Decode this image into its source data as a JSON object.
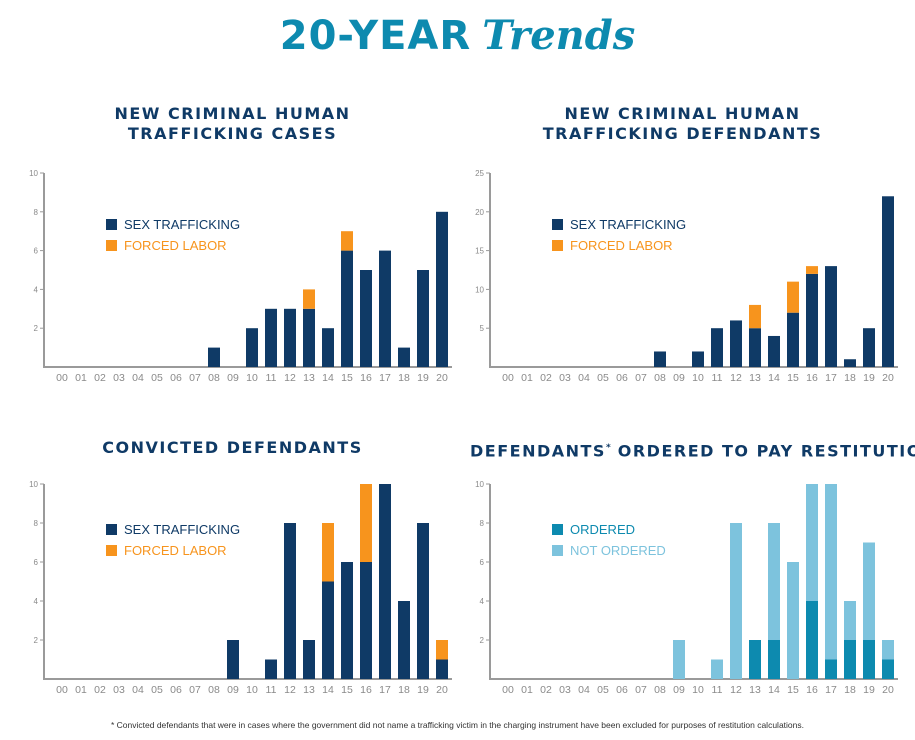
{
  "header": {
    "title_bold": "20-YEAR",
    "title_italic": "Trends"
  },
  "colors": {
    "sex_trafficking": "#0f3a66",
    "forced_labor": "#f7941d",
    "ordered": "#0d8aaf",
    "not_ordered": "#7dc3dd",
    "axis": "#9a9a9a",
    "tick_text": "#8a8a8a",
    "title_text": "#0f3a66"
  },
  "footnote": "* Convicted defendants that were in cases where the government did not name a trafficking victim in the charging instrument have been excluded for purposes of restitution calculations.",
  "chart_data": [
    {
      "id": "cases",
      "type": "bar",
      "stacked": true,
      "title": "NEW CRIMINAL HUMAN TRAFFICKING CASES",
      "title_lines": [
        "NEW CRIMINAL HUMAN",
        "TRAFFICKING CASES"
      ],
      "categories": [
        "00",
        "01",
        "02",
        "03",
        "04",
        "05",
        "06",
        "07",
        "08",
        "09",
        "10",
        "11",
        "12",
        "13",
        "14",
        "15",
        "16",
        "17",
        "18",
        "19",
        "20"
      ],
      "ylim": [
        0,
        10
      ],
      "yticks": [
        2,
        4,
        6,
        8,
        10
      ],
      "legend_position": "upper-left",
      "series": [
        {
          "name": "SEX TRAFFICKING",
          "color_key": "sex_trafficking",
          "values": [
            0,
            0,
            0,
            0,
            0,
            0,
            0,
            0,
            1,
            0,
            2,
            3,
            3,
            3,
            2,
            6,
            5,
            6,
            1,
            5,
            8
          ]
        },
        {
          "name": "FORCED LABOR",
          "color_key": "forced_labor",
          "values": [
            0,
            0,
            0,
            0,
            0,
            0,
            0,
            0,
            0,
            0,
            0,
            0,
            0,
            1,
            0,
            1,
            0,
            0,
            0,
            0,
            0
          ]
        }
      ]
    },
    {
      "id": "defendants",
      "type": "bar",
      "stacked": true,
      "title": "NEW CRIMINAL HUMAN TRAFFICKING DEFENDANTS",
      "title_lines": [
        "NEW CRIMINAL HUMAN",
        "TRAFFICKING DEFENDANTS"
      ],
      "categories": [
        "00",
        "01",
        "02",
        "03",
        "04",
        "05",
        "06",
        "07",
        "08",
        "09",
        "10",
        "11",
        "12",
        "13",
        "14",
        "15",
        "16",
        "17",
        "18",
        "19",
        "20"
      ],
      "ylim": [
        0,
        25
      ],
      "yticks": [
        5,
        10,
        15,
        20,
        25
      ],
      "legend_position": "upper-left",
      "series": [
        {
          "name": "SEX TRAFFICKING",
          "color_key": "sex_trafficking",
          "values": [
            0,
            0,
            0,
            0,
            0,
            0,
            0,
            0,
            2,
            0,
            2,
            5,
            6,
            5,
            4,
            7,
            12,
            13,
            1,
            5,
            22
          ]
        },
        {
          "name": "FORCED LABOR",
          "color_key": "forced_labor",
          "values": [
            0,
            0,
            0,
            0,
            0,
            0,
            0,
            0,
            0,
            0,
            0,
            0,
            0,
            3,
            0,
            4,
            1,
            0,
            0,
            0,
            0
          ]
        }
      ]
    },
    {
      "id": "convicted",
      "type": "bar",
      "stacked": true,
      "title": "CONVICTED DEFENDANTS",
      "title_lines": [
        "CONVICTED DEFENDANTS"
      ],
      "categories": [
        "00",
        "01",
        "02",
        "03",
        "04",
        "05",
        "06",
        "07",
        "08",
        "09",
        "10",
        "11",
        "12",
        "13",
        "14",
        "15",
        "16",
        "17",
        "18",
        "19",
        "20"
      ],
      "ylim": [
        0,
        10
      ],
      "yticks": [
        2,
        4,
        6,
        8,
        10
      ],
      "legend_position": "upper-left",
      "series": [
        {
          "name": "SEX TRAFFICKING",
          "color_key": "sex_trafficking",
          "values": [
            0,
            0,
            0,
            0,
            0,
            0,
            0,
            0,
            0,
            2,
            0,
            1,
            8,
            2,
            5,
            6,
            6,
            10,
            4,
            8,
            1
          ]
        },
        {
          "name": "FORCED LABOR",
          "color_key": "forced_labor",
          "values": [
            0,
            0,
            0,
            0,
            0,
            0,
            0,
            0,
            0,
            0,
            0,
            0,
            0,
            0,
            3,
            0,
            4,
            0,
            0,
            0,
            1
          ]
        }
      ]
    },
    {
      "id": "restitution",
      "type": "bar",
      "stacked": true,
      "title": "DEFENDANTS* ORDERED TO PAY RESTITUTION",
      "title_main": "DEFENDANTS",
      "title_sup": "*",
      "title_rest": " ORDERED TO PAY RESTITUTION",
      "categories": [
        "00",
        "01",
        "02",
        "03",
        "04",
        "05",
        "06",
        "07",
        "08",
        "09",
        "10",
        "11",
        "12",
        "13",
        "14",
        "15",
        "16",
        "17",
        "18",
        "19",
        "20"
      ],
      "ylim": [
        0,
        10
      ],
      "yticks": [
        2,
        4,
        6,
        8,
        10
      ],
      "legend_position": "upper-left",
      "series": [
        {
          "name": "ORDERED",
          "color_key": "ordered",
          "values": [
            0,
            0,
            0,
            0,
            0,
            0,
            0,
            0,
            0,
            0,
            0,
            0,
            0,
            2,
            2,
            0,
            4,
            1,
            2,
            2,
            1
          ]
        },
        {
          "name": "NOT ORDERED",
          "color_key": "not_ordered",
          "values": [
            0,
            0,
            0,
            0,
            0,
            0,
            0,
            0,
            0,
            2,
            0,
            1,
            8,
            0,
            6,
            6,
            6,
            9,
            2,
            5,
            1
          ]
        }
      ]
    }
  ]
}
